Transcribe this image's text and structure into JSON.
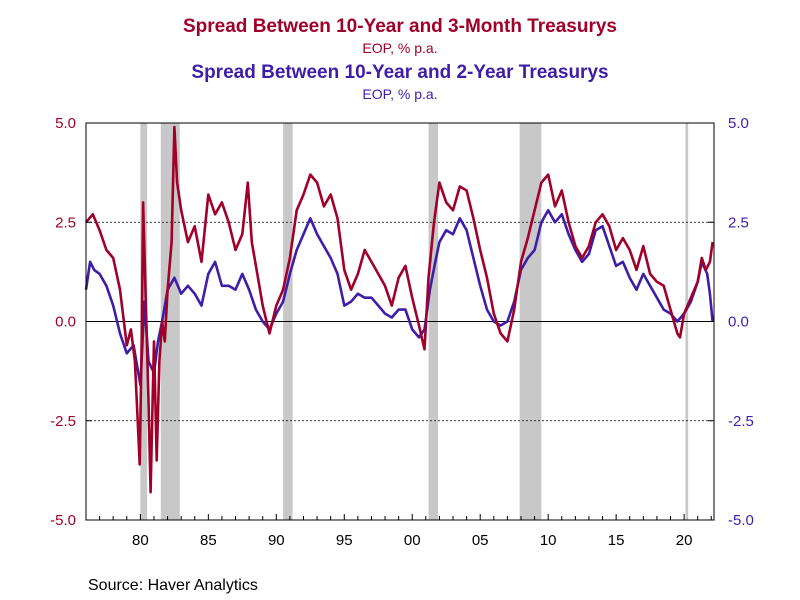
{
  "titles": {
    "series1_title": "Spread Between 10-Year and 3-Month Treasurys",
    "series1_sub": "EOP, % p.a.",
    "series2_title": "Spread Between 10-Year and 2-Year Treasurys",
    "series2_sub": "EOP, % p.a."
  },
  "source": "Source:  Haver Analytics",
  "colors": {
    "series1": "#a0002a",
    "series2": "#3e1ea8",
    "recession": "#c8c8c8",
    "axis": "#000000"
  },
  "chart_data": {
    "type": "line",
    "x_range": [
      1976,
      2022.2
    ],
    "ylim": [
      -5,
      5
    ],
    "yticks": [
      5.0,
      2.5,
      0.0,
      -2.5,
      -5.0
    ],
    "ytick_labels": [
      "5.0",
      "2.5",
      "0.0",
      "-2.5",
      "-5.0"
    ],
    "xticks": [
      1980,
      1985,
      1990,
      1995,
      2000,
      2005,
      2010,
      2015,
      2020
    ],
    "xtick_labels": [
      "80",
      "85",
      "90",
      "95",
      "00",
      "05",
      "10",
      "15",
      "20"
    ],
    "dashed_gridlines": [
      2.5,
      -2.5
    ],
    "solid_gridlines": [
      0
    ],
    "recessions": [
      [
        1980.0,
        1980.5
      ],
      [
        1981.5,
        1982.9
      ],
      [
        1990.5,
        1991.2
      ],
      [
        2001.2,
        2001.9
      ],
      [
        2007.9,
        2009.5
      ],
      [
        2020.1,
        2020.3
      ]
    ],
    "series": [
      {
        "name": "Spread Between 10-Year and 3-Month Treasurys",
        "color": "#a0002a",
        "points": [
          [
            1976.0,
            2.5
          ],
          [
            1976.5,
            2.7
          ],
          [
            1977.0,
            2.3
          ],
          [
            1977.5,
            1.8
          ],
          [
            1978.0,
            1.6
          ],
          [
            1978.5,
            0.8
          ],
          [
            1979.0,
            -0.6
          ],
          [
            1979.3,
            -0.2
          ],
          [
            1979.6,
            -1.0
          ],
          [
            1979.8,
            -2.5
          ],
          [
            1979.95,
            -3.6
          ],
          [
            1980.1,
            -0.5
          ],
          [
            1980.2,
            3.0
          ],
          [
            1980.4,
            0.5
          ],
          [
            1980.6,
            -2.0
          ],
          [
            1980.75,
            -4.3
          ],
          [
            1980.9,
            -2.0
          ],
          [
            1981.0,
            -0.5
          ],
          [
            1981.2,
            -3.5
          ],
          [
            1981.4,
            -1.0
          ],
          [
            1981.6,
            0.0
          ],
          [
            1981.8,
            -0.5
          ],
          [
            1982.0,
            0.8
          ],
          [
            1982.3,
            2.0
          ],
          [
            1982.5,
            4.9
          ],
          [
            1982.7,
            3.5
          ],
          [
            1983.0,
            2.8
          ],
          [
            1983.5,
            2.0
          ],
          [
            1984.0,
            2.4
          ],
          [
            1984.5,
            1.5
          ],
          [
            1985.0,
            3.2
          ],
          [
            1985.5,
            2.7
          ],
          [
            1986.0,
            3.0
          ],
          [
            1986.5,
            2.5
          ],
          [
            1987.0,
            1.8
          ],
          [
            1987.5,
            2.2
          ],
          [
            1987.9,
            3.5
          ],
          [
            1988.2,
            2.0
          ],
          [
            1988.6,
            1.2
          ],
          [
            1989.0,
            0.4
          ],
          [
            1989.5,
            -0.3
          ],
          [
            1990.0,
            0.4
          ],
          [
            1990.5,
            0.8
          ],
          [
            1991.0,
            1.6
          ],
          [
            1991.5,
            2.8
          ],
          [
            1992.0,
            3.2
          ],
          [
            1992.5,
            3.7
          ],
          [
            1993.0,
            3.5
          ],
          [
            1993.5,
            2.9
          ],
          [
            1994.0,
            3.2
          ],
          [
            1994.5,
            2.6
          ],
          [
            1995.0,
            1.3
          ],
          [
            1995.5,
            0.8
          ],
          [
            1996.0,
            1.2
          ],
          [
            1996.5,
            1.8
          ],
          [
            1997.0,
            1.5
          ],
          [
            1997.5,
            1.2
          ],
          [
            1998.0,
            0.9
          ],
          [
            1998.5,
            0.4
          ],
          [
            1999.0,
            1.1
          ],
          [
            1999.5,
            1.4
          ],
          [
            2000.0,
            0.6
          ],
          [
            2000.5,
            -0.1
          ],
          [
            2000.9,
            -0.7
          ],
          [
            2001.2,
            1.1
          ],
          [
            2001.6,
            2.5
          ],
          [
            2002.0,
            3.5
          ],
          [
            2002.5,
            3.0
          ],
          [
            2003.0,
            2.8
          ],
          [
            2003.5,
            3.4
          ],
          [
            2004.0,
            3.3
          ],
          [
            2004.5,
            2.6
          ],
          [
            2005.0,
            1.8
          ],
          [
            2005.5,
            1.1
          ],
          [
            2006.0,
            0.2
          ],
          [
            2006.5,
            -0.3
          ],
          [
            2007.0,
            -0.5
          ],
          [
            2007.5,
            0.3
          ],
          [
            2008.0,
            1.5
          ],
          [
            2008.5,
            2.1
          ],
          [
            2009.0,
            2.8
          ],
          [
            2009.5,
            3.5
          ],
          [
            2010.0,
            3.7
          ],
          [
            2010.5,
            2.9
          ],
          [
            2011.0,
            3.3
          ],
          [
            2011.5,
            2.5
          ],
          [
            2012.0,
            1.9
          ],
          [
            2012.5,
            1.6
          ],
          [
            2013.0,
            1.9
          ],
          [
            2013.5,
            2.5
          ],
          [
            2014.0,
            2.7
          ],
          [
            2014.5,
            2.4
          ],
          [
            2015.0,
            1.8
          ],
          [
            2015.5,
            2.1
          ],
          [
            2016.0,
            1.8
          ],
          [
            2016.5,
            1.3
          ],
          [
            2017.0,
            1.9
          ],
          [
            2017.5,
            1.2
          ],
          [
            2018.0,
            1.0
          ],
          [
            2018.5,
            0.9
          ],
          [
            2019.0,
            0.3
          ],
          [
            2019.5,
            -0.3
          ],
          [
            2019.7,
            -0.4
          ],
          [
            2020.0,
            0.2
          ],
          [
            2020.5,
            0.6
          ],
          [
            2021.0,
            1.0
          ],
          [
            2021.3,
            1.6
          ],
          [
            2021.6,
            1.3
          ],
          [
            2021.9,
            1.5
          ],
          [
            2022.1,
            2.0
          ]
        ]
      },
      {
        "name": "Spread Between 10-Year and 2-Year Treasurys",
        "color": "#3e1ea8",
        "points": [
          [
            1976.0,
            0.8
          ],
          [
            1976.3,
            1.5
          ],
          [
            1976.6,
            1.3
          ],
          [
            1977.0,
            1.2
          ],
          [
            1977.5,
            0.9
          ],
          [
            1978.0,
            0.4
          ],
          [
            1978.5,
            -0.3
          ],
          [
            1979.0,
            -0.8
          ],
          [
            1979.5,
            -0.6
          ],
          [
            1980.0,
            -1.6
          ],
          [
            1980.3,
            0.5
          ],
          [
            1980.6,
            -1.0
          ],
          [
            1981.0,
            -1.3
          ],
          [
            1981.3,
            -0.5
          ],
          [
            1981.6,
            0.0
          ],
          [
            1982.0,
            0.8
          ],
          [
            1982.5,
            1.1
          ],
          [
            1983.0,
            0.7
          ],
          [
            1983.5,
            0.9
          ],
          [
            1984.0,
            0.7
          ],
          [
            1984.5,
            0.4
          ],
          [
            1985.0,
            1.2
          ],
          [
            1985.5,
            1.5
          ],
          [
            1986.0,
            0.9
          ],
          [
            1986.5,
            0.9
          ],
          [
            1987.0,
            0.8
          ],
          [
            1987.5,
            1.2
          ],
          [
            1988.0,
            0.8
          ],
          [
            1988.5,
            0.3
          ],
          [
            1989.0,
            0.0
          ],
          [
            1989.5,
            -0.2
          ],
          [
            1990.0,
            0.2
          ],
          [
            1990.5,
            0.5
          ],
          [
            1991.0,
            1.2
          ],
          [
            1991.5,
            1.8
          ],
          [
            1992.0,
            2.2
          ],
          [
            1992.5,
            2.6
          ],
          [
            1993.0,
            2.2
          ],
          [
            1993.5,
            1.9
          ],
          [
            1994.0,
            1.6
          ],
          [
            1994.5,
            1.2
          ],
          [
            1995.0,
            0.4
          ],
          [
            1995.5,
            0.5
          ],
          [
            1996.0,
            0.7
          ],
          [
            1996.5,
            0.6
          ],
          [
            1997.0,
            0.6
          ],
          [
            1997.5,
            0.4
          ],
          [
            1998.0,
            0.2
          ],
          [
            1998.5,
            0.1
          ],
          [
            1999.0,
            0.3
          ],
          [
            1999.5,
            0.3
          ],
          [
            2000.0,
            -0.2
          ],
          [
            2000.5,
            -0.4
          ],
          [
            2000.9,
            -0.2
          ],
          [
            2001.3,
            0.8
          ],
          [
            2001.7,
            1.5
          ],
          [
            2002.0,
            2.0
          ],
          [
            2002.5,
            2.3
          ],
          [
            2003.0,
            2.2
          ],
          [
            2003.5,
            2.6
          ],
          [
            2004.0,
            2.3
          ],
          [
            2004.5,
            1.6
          ],
          [
            2005.0,
            0.9
          ],
          [
            2005.5,
            0.3
          ],
          [
            2006.0,
            0.0
          ],
          [
            2006.5,
            -0.1
          ],
          [
            2007.0,
            0.0
          ],
          [
            2007.5,
            0.5
          ],
          [
            2008.0,
            1.3
          ],
          [
            2008.5,
            1.6
          ],
          [
            2009.0,
            1.8
          ],
          [
            2009.5,
            2.5
          ],
          [
            2010.0,
            2.8
          ],
          [
            2010.5,
            2.5
          ],
          [
            2011.0,
            2.7
          ],
          [
            2011.5,
            2.2
          ],
          [
            2012.0,
            1.8
          ],
          [
            2012.5,
            1.5
          ],
          [
            2013.0,
            1.7
          ],
          [
            2013.5,
            2.3
          ],
          [
            2014.0,
            2.4
          ],
          [
            2014.5,
            1.9
          ],
          [
            2015.0,
            1.4
          ],
          [
            2015.5,
            1.5
          ],
          [
            2016.0,
            1.1
          ],
          [
            2016.5,
            0.8
          ],
          [
            2017.0,
            1.2
          ],
          [
            2017.5,
            0.9
          ],
          [
            2018.0,
            0.6
          ],
          [
            2018.5,
            0.3
          ],
          [
            2019.0,
            0.2
          ],
          [
            2019.5,
            0.0
          ],
          [
            2020.0,
            0.2
          ],
          [
            2020.5,
            0.5
          ],
          [
            2021.0,
            1.0
          ],
          [
            2021.3,
            1.5
          ],
          [
            2021.7,
            1.2
          ],
          [
            2021.9,
            0.7
          ],
          [
            2022.1,
            0.0
          ]
        ]
      }
    ]
  }
}
